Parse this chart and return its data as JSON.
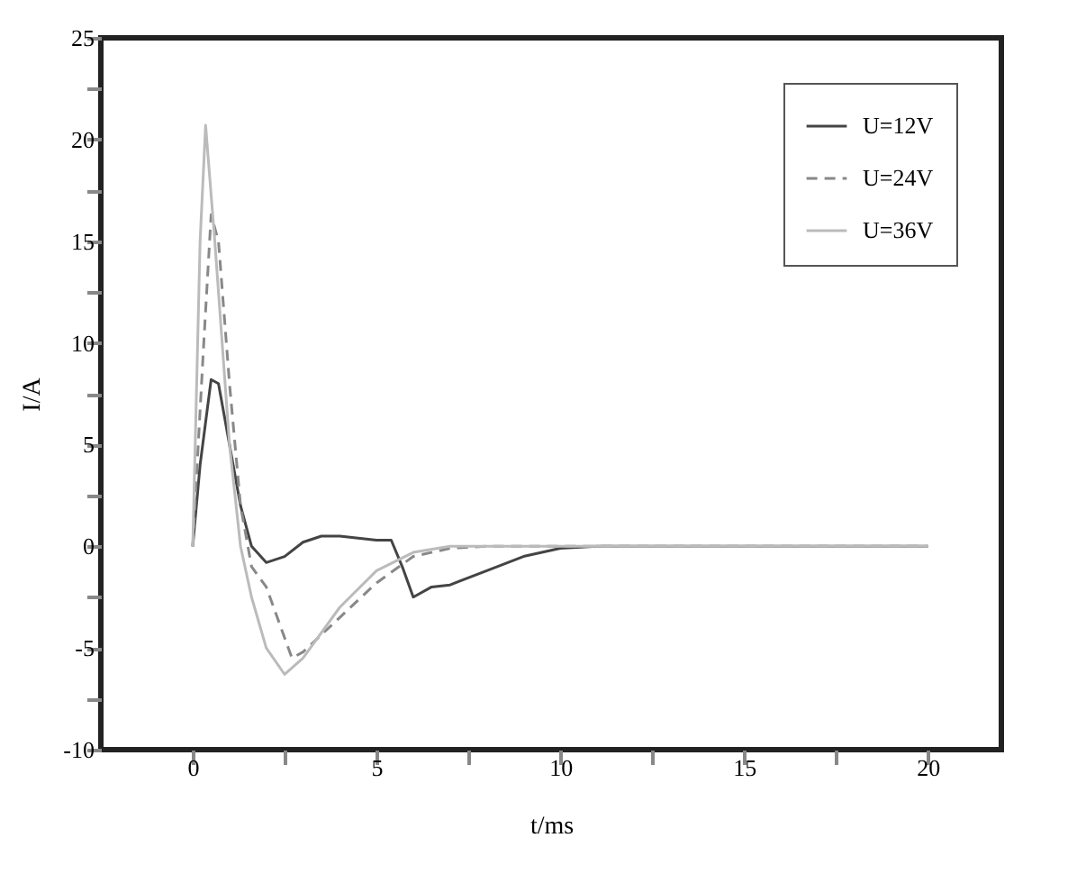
{
  "chart_data": {
    "type": "line",
    "xlabel": "t/ms",
    "ylabel": "I/A",
    "xlim": [
      -2.5,
      22
    ],
    "ylim": [
      -10,
      25
    ],
    "xticks": [
      0,
      {
        "value": 2.5,
        "label": null
      },
      5,
      {
        "value": 7.5,
        "label": null
      },
      10,
      {
        "value": 12.5,
        "label": null
      },
      15,
      {
        "value": 17.5,
        "label": null
      },
      20
    ],
    "yticks": [
      -10,
      {
        "value": -7.5,
        "label": null
      },
      -5,
      {
        "value": -2.5,
        "label": null
      },
      0,
      {
        "value": 2.5,
        "label": null
      },
      5,
      {
        "value": 7.5,
        "label": null
      },
      10,
      {
        "value": 12.5,
        "label": null
      },
      15,
      {
        "value": 17.5,
        "label": null
      },
      20,
      {
        "value": 22.5,
        "label": null
      },
      25
    ],
    "grid": false,
    "legend": "top right",
    "marker": "none",
    "series": [
      {
        "name": "U=12V",
        "color": "#444444",
        "line_style": "solid",
        "x": [
          0,
          0.2,
          0.5,
          0.7,
          1,
          1.3,
          1.6,
          2,
          2.5,
          3,
          3.5,
          4,
          5,
          5.4,
          5.7,
          6,
          6.5,
          7,
          8,
          9,
          10,
          11,
          20
        ],
        "values": [
          0,
          4,
          8.2,
          8,
          5,
          2,
          0,
          -0.8,
          -0.5,
          0.2,
          0.5,
          0.5,
          0.3,
          0.3,
          -1,
          -2.5,
          -2,
          -1.9,
          -1.2,
          -0.5,
          -0.1,
          0,
          0
        ]
      },
      {
        "name": "U=24V",
        "color": "#888888",
        "line_style": "dashed",
        "x": [
          0,
          0.3,
          0.5,
          0.7,
          1,
          1.3,
          1.6,
          2,
          2.3,
          2.7,
          3,
          4,
          5,
          6,
          7,
          8,
          20
        ],
        "values": [
          0,
          10,
          16.3,
          15,
          8,
          2,
          -1,
          -2,
          -3.5,
          -5.5,
          -5.2,
          -3.5,
          -1.8,
          -0.5,
          -0.1,
          0,
          0
        ]
      },
      {
        "name": "U=36V",
        "color": "#bbbbbb",
        "line_style": "solid",
        "x": [
          0,
          0.2,
          0.35,
          0.6,
          1,
          1.3,
          1.6,
          2,
          2.5,
          3,
          4,
          5,
          6,
          7,
          20
        ],
        "values": [
          0,
          15,
          20.7,
          15,
          5,
          0,
          -2.5,
          -5,
          -6.3,
          -5.5,
          -3,
          -1.2,
          -0.3,
          0,
          0
        ]
      }
    ]
  }
}
